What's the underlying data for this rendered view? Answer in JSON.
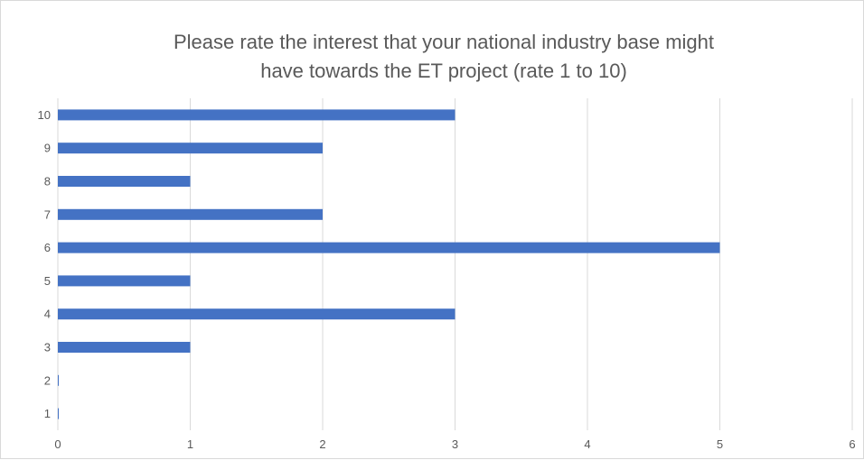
{
  "chart_data": {
    "type": "bar",
    "orientation": "horizontal",
    "title": "Please rate the interest that your national industry base might\nhave towards the ET project (rate 1 to 10)",
    "xlabel": "",
    "ylabel": "",
    "categories": [
      "1",
      "2",
      "3",
      "4",
      "5",
      "6",
      "7",
      "8",
      "9",
      "10"
    ],
    "values": [
      0,
      0,
      1,
      3,
      1,
      5,
      2,
      1,
      2,
      3
    ],
    "xlim": [
      0,
      6
    ],
    "xticks": [
      "0",
      "1",
      "2",
      "3",
      "4",
      "5",
      "6"
    ],
    "grid": "vertical",
    "legend": "none",
    "bar_color": "#4472c4",
    "grid_color": "#d9d9d9",
    "text_color": "#595959"
  }
}
